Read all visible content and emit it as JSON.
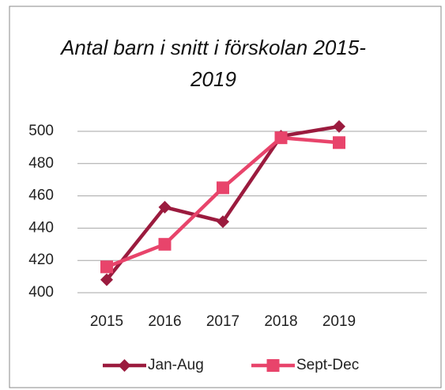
{
  "chart_data": {
    "type": "line",
    "title": "Antal barn i snitt i förskolan 2015-2019",
    "categories": [
      "2015",
      "2016",
      "2017",
      "2018",
      "2019"
    ],
    "series": [
      {
        "name": "Jan-Aug",
        "color": "#9b1b3e",
        "marker": "diamond",
        "values": [
          408,
          453,
          444,
          497,
          503
        ]
      },
      {
        "name": "Sept-Dec",
        "color": "#e8446b",
        "marker": "square",
        "values": [
          416,
          430,
          465,
          496,
          493
        ]
      }
    ],
    "ylim": [
      400,
      500
    ],
    "yticks": [
      400,
      420,
      440,
      460,
      480,
      500
    ],
    "grid": true,
    "legend": "bottom"
  }
}
